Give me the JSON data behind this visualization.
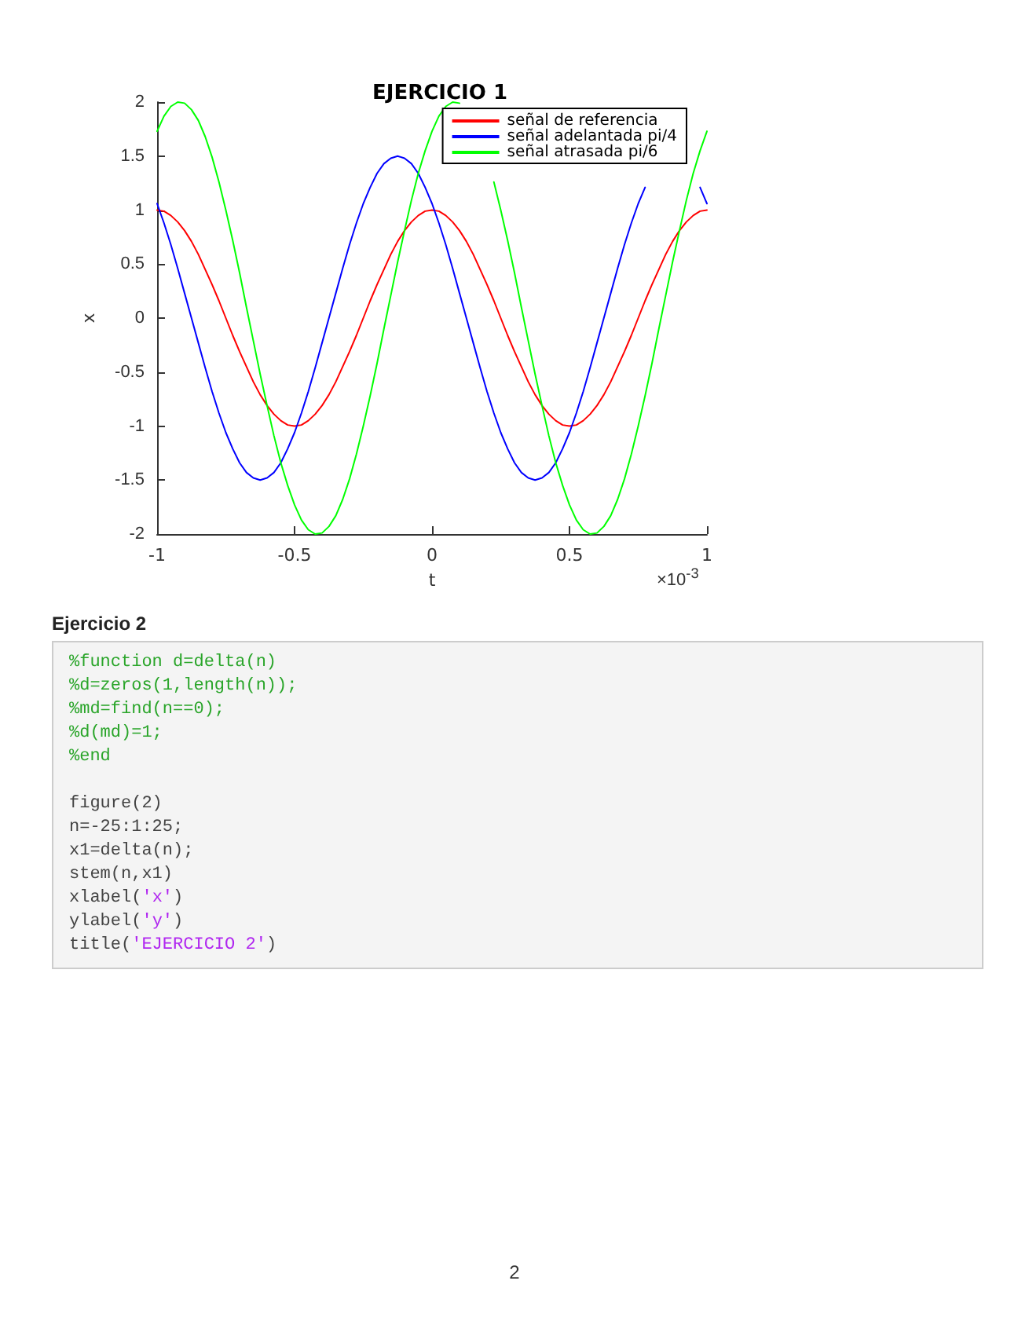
{
  "chart_data": {
    "type": "line",
    "title": "EJERCICIO 1",
    "xlabel": "t",
    "ylabel": "x",
    "annotations": [
      "×10$^{-3}$",
      "Ejercicio 2",
      "%function d=delta(n)\n%d=zeros(1,length(n));\n%md=find(n==0);\n%d(md)=1;\n%end\n\nfigure(2)\nn=-25:1:25;\nx1=delta(n);\nstem(n,x1)\nxlabel('x')\nylabel('y')\ntitle('EJERCICIO 2')",
      "2"
    ],
    "x": [
      -1,
      -0.975,
      -0.95,
      -0.925,
      -0.9,
      -0.875,
      -0.85,
      -0.825,
      -0.8,
      -0.775,
      -0.75,
      -0.725,
      -0.7,
      -0.675,
      -0.65,
      -0.625,
      -0.6,
      -0.575,
      -0.55,
      -0.525,
      -0.5,
      -0.475,
      -0.45,
      -0.425,
      -0.4,
      -0.375,
      -0.35,
      -0.325,
      -0.3,
      -0.275,
      -0.25,
      -0.225,
      -0.2,
      -0.175,
      -0.15,
      -0.125,
      -0.1,
      -0.075,
      -0.05,
      -0.025,
      0,
      0.025,
      0.05,
      0.075,
      0.1,
      0.125,
      0.15,
      0.175,
      0.2,
      0.225,
      0.25,
      0.275,
      0.3,
      0.325,
      0.35,
      0.375,
      0.4,
      0.425,
      0.45,
      0.475,
      0.5,
      0.525,
      0.55,
      0.575,
      0.6,
      0.625,
      0.65,
      0.675,
      0.7,
      0.725,
      0.75,
      0.775,
      0.8,
      0.825,
      0.85,
      0.875,
      0.9,
      0.925,
      0.95,
      0.975,
      1
    ],
    "series": [
      {
        "name": "señal de referencia",
        "color": "#ff0000",
        "values": [
          1,
          0.99,
          0.95,
          0.89,
          0.81,
          0.71,
          0.59,
          0.45,
          0.31,
          0.16,
          0,
          -0.16,
          -0.31,
          -0.45,
          -0.59,
          -0.71,
          -0.81,
          -0.89,
          -0.95,
          -0.99,
          -1,
          -0.99,
          -0.95,
          -0.89,
          -0.81,
          -0.71,
          -0.59,
          -0.45,
          -0.31,
          -0.16,
          0,
          0.16,
          0.31,
          0.45,
          0.59,
          0.71,
          0.81,
          0.89,
          0.95,
          0.99,
          1,
          0.99,
          0.95,
          0.89,
          0.81,
          0.71,
          0.59,
          0.45,
          0.31,
          0.16,
          0,
          -0.16,
          -0.31,
          -0.45,
          -0.59,
          -0.71,
          -0.81,
          -0.89,
          -0.95,
          -0.99,
          -1,
          -0.99,
          -0.95,
          -0.89,
          -0.81,
          -0.71,
          -0.59,
          -0.45,
          -0.31,
          -0.16,
          0,
          0.16,
          0.31,
          0.45,
          0.59,
          0.71,
          0.81,
          0.89,
          0.95,
          0.99,
          1
        ]
      },
      {
        "name": "señal adelantada pi/4",
        "color": "#0000ff",
        "values": [
          1.06,
          0.88,
          0.68,
          0.46,
          0.23,
          0,
          -0.23,
          -0.46,
          -0.68,
          -0.88,
          -1.06,
          -1.21,
          -1.34,
          -1.43,
          -1.48,
          -1.5,
          -1.48,
          -1.43,
          -1.34,
          -1.21,
          -1.06,
          -0.88,
          -0.68,
          -0.46,
          -0.23,
          0,
          0.23,
          0.46,
          0.68,
          0.88,
          1.06,
          1.21,
          1.34,
          1.43,
          1.48,
          1.5,
          1.48,
          1.43,
          1.34,
          1.21,
          1.06,
          0.88,
          0.68,
          0.46,
          0.23,
          0,
          -0.23,
          -0.46,
          -0.68,
          -0.88,
          -1.06,
          -1.21,
          -1.34,
          -1.43,
          -1.48,
          -1.5,
          -1.48,
          -1.43,
          -1.34,
          -1.21,
          -1.06,
          -0.88,
          -0.68,
          -0.46,
          -0.23,
          0,
          0.23,
          0.46,
          0.68,
          0.88,
          1.06,
          1.21,
          null,
          null,
          null,
          null,
          null,
          null,
          null,
          1.21,
          1.06
        ]
      },
      {
        "name": "señal atrasada pi/6",
        "color": "#00ff00",
        "values": [
          1.73,
          1.87,
          1.96,
          2,
          1.99,
          1.93,
          1.83,
          1.68,
          1.49,
          1.26,
          1,
          0.72,
          0.42,
          0.1,
          -0.21,
          -0.52,
          -0.81,
          -1.09,
          -1.34,
          -1.55,
          -1.73,
          -1.87,
          -1.96,
          -2,
          -1.99,
          -1.93,
          -1.83,
          -1.68,
          -1.49,
          -1.26,
          -1,
          -0.72,
          -0.42,
          -0.1,
          0.21,
          0.52,
          0.81,
          1.09,
          1.34,
          1.55,
          1.73,
          1.87,
          1.96,
          2,
          1.99,
          null,
          null,
          null,
          null,
          1.26,
          1,
          0.72,
          0.42,
          0.1,
          -0.21,
          -0.52,
          -0.81,
          -1.09,
          -1.34,
          -1.55,
          -1.73,
          -1.87,
          -1.96,
          -2,
          -1.99,
          -1.93,
          -1.83,
          -1.68,
          -1.49,
          -1.26,
          -1,
          -0.72,
          -0.42,
          -0.1,
          0.21,
          0.52,
          0.81,
          1.09,
          1.34,
          1.55,
          1.73
        ]
      }
    ],
    "xlim": [
      -1,
      1
    ],
    "xticks": [
      -1,
      -0.5,
      0,
      0.5,
      1
    ],
    "ylim": [
      -2,
      2
    ],
    "yticks": [
      -2,
      -1.5,
      -1,
      -0.5,
      0,
      0.5,
      1,
      1.5,
      2
    ],
    "grid": false,
    "legend": "top right",
    "marker": "none",
    "line_style": "solid"
  }
}
